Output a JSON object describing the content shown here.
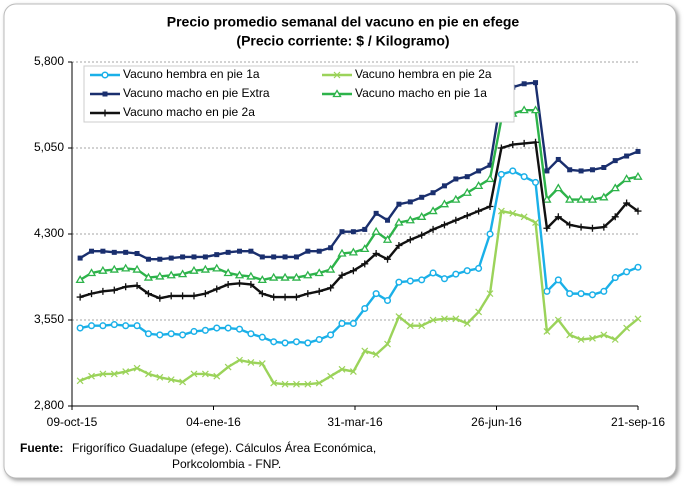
{
  "chart_data": {
    "type": "line",
    "title": "Precio promedio semanal del vacuno en pie en efege",
    "subtitle": "(Precio corriente: $ / Kilogramo)",
    "x": [
      "2015-10-14",
      "2015-10-21",
      "2015-10-28",
      "2015-11-04",
      "2015-11-11",
      "2015-11-18",
      "2015-11-25",
      "2015-12-02",
      "2015-12-09",
      "2015-12-16",
      "2015-12-23",
      "2015-12-30",
      "2016-01-06",
      "2016-01-13",
      "2016-01-20",
      "2016-01-27",
      "2016-02-03",
      "2016-02-10",
      "2016-02-17",
      "2016-02-24",
      "2016-03-02",
      "2016-03-09",
      "2016-03-16",
      "2016-03-23",
      "2016-03-30",
      "2016-04-06",
      "2016-04-13",
      "2016-04-20",
      "2016-04-27",
      "2016-05-04",
      "2016-05-11",
      "2016-05-18",
      "2016-05-25",
      "2016-06-01",
      "2016-06-08",
      "2016-06-15",
      "2016-06-22",
      "2016-06-29",
      "2016-07-06",
      "2016-07-13",
      "2016-07-20",
      "2016-07-27",
      "2016-08-03",
      "2016-08-10",
      "2016-08-17",
      "2016-08-24",
      "2016-08-31",
      "2016-09-07",
      "2016-09-14",
      "2016-09-21"
    ],
    "xlim": [
      "2015-10-09",
      "2016-09-21"
    ],
    "xticks": [
      {
        "value": "2015-10-09",
        "label": "09-oct-15"
      },
      {
        "value": "2016-01-04",
        "label": "04-ene-16"
      },
      {
        "value": "2016-03-31",
        "label": "31-mar-16"
      },
      {
        "value": "2016-06-26",
        "label": "26-jun-16"
      },
      {
        "value": "2016-09-21",
        "label": "21-sep-16"
      }
    ],
    "ylim": [
      2800,
      5800
    ],
    "yticks": [
      {
        "value": 2800,
        "label": "2,800"
      },
      {
        "value": 3550,
        "label": "3,550"
      },
      {
        "value": 4300,
        "label": "4,300"
      },
      {
        "value": 5050,
        "label": "5,050"
      },
      {
        "value": 5800,
        "label": "5,800"
      }
    ],
    "grid": true,
    "legend": "upper left",
    "series": [
      {
        "name": "Vacuno hembra en pie 1a",
        "color": "#1ab0e8",
        "marker": "circle",
        "values": [
          3480,
          3500,
          3500,
          3510,
          3500,
          3500,
          3430,
          3420,
          3430,
          3420,
          3450,
          3460,
          3480,
          3480,
          3470,
          3430,
          3400,
          3360,
          3350,
          3360,
          3350,
          3380,
          3420,
          3520,
          3520,
          3650,
          3780,
          3720,
          3880,
          3890,
          3900,
          3960,
          3910,
          3950,
          3980,
          4000,
          4300,
          4820,
          4850,
          4800,
          4750,
          3800,
          3900,
          3780,
          3780,
          3770,
          3800,
          3920,
          3970,
          4010
        ]
      },
      {
        "name": "Vacuno hembra en pie 2a",
        "color": "#9bd35a",
        "marker": "x",
        "values": [
          3020,
          3060,
          3080,
          3080,
          3100,
          3130,
          3080,
          3050,
          3030,
          3010,
          3080,
          3080,
          3060,
          3140,
          3200,
          3180,
          3170,
          3000,
          2990,
          2990,
          2990,
          3000,
          3060,
          3120,
          3100,
          3280,
          3250,
          3340,
          3580,
          3500,
          3500,
          3550,
          3560,
          3560,
          3520,
          3620,
          3780,
          4500,
          4480,
          4450,
          4400,
          3450,
          3550,
          3420,
          3380,
          3390,
          3420,
          3380,
          3480,
          3560
        ]
      },
      {
        "name": "Vacuno macho en pie Extra",
        "color": "#1a2f6e",
        "marker": "square",
        "values": [
          4090,
          4150,
          4150,
          4140,
          4140,
          4130,
          4080,
          4080,
          4090,
          4100,
          4100,
          4100,
          4120,
          4140,
          4150,
          4150,
          4100,
          4100,
          4100,
          4100,
          4150,
          4150,
          4180,
          4320,
          4320,
          4340,
          4480,
          4420,
          4560,
          4580,
          4620,
          4660,
          4720,
          4780,
          4800,
          4850,
          4900,
          5500,
          5580,
          5610,
          5620,
          4850,
          4950,
          4860,
          4850,
          4860,
          4880,
          4940,
          4980,
          5020
        ]
      },
      {
        "name": "Vacuno macho en pie 1a",
        "color": "#2db34a",
        "marker": "triangle",
        "values": [
          3900,
          3960,
          3980,
          3990,
          4000,
          3990,
          3920,
          3930,
          3940,
          3950,
          3980,
          3990,
          4000,
          3960,
          3940,
          3930,
          3900,
          3920,
          3920,
          3920,
          3940,
          3960,
          3990,
          4130,
          4140,
          4170,
          4320,
          4250,
          4400,
          4420,
          4450,
          4500,
          4560,
          4600,
          4660,
          4720,
          4780,
          5300,
          5350,
          5380,
          5380,
          4600,
          4700,
          4600,
          4600,
          4600,
          4620,
          4700,
          4780,
          4800
        ]
      },
      {
        "name": "Vacuno macho en pie 2a",
        "color": "#111111",
        "marker": "plus",
        "values": [
          3750,
          3780,
          3800,
          3810,
          3840,
          3850,
          3780,
          3740,
          3760,
          3760,
          3760,
          3780,
          3820,
          3860,
          3870,
          3860,
          3780,
          3750,
          3750,
          3750,
          3780,
          3800,
          3830,
          3940,
          3980,
          4040,
          4130,
          4080,
          4200,
          4250,
          4290,
          4340,
          4380,
          4420,
          4460,
          4500,
          4540,
          5050,
          5080,
          5090,
          5100,
          4350,
          4450,
          4380,
          4360,
          4350,
          4360,
          4450,
          4570,
          4500
        ]
      }
    ],
    "source": {
      "label": "Fuente:",
      "lines": [
        "Frigorífico Guadalupe (efege). Cálculos Área Económica,",
        "Porkcolombia  - FNP."
      ]
    }
  }
}
